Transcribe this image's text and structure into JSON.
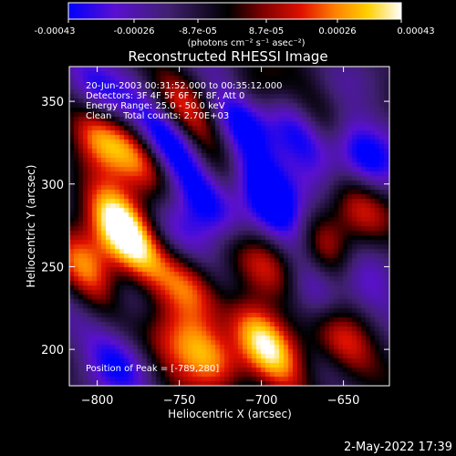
{
  "colorbar": {
    "tick_labels": [
      "-0.00043",
      "-0.00026",
      "-8.7e-05",
      "8.7e-05",
      "0.00026",
      "0.00043"
    ],
    "range": [
      -0.00043,
      0.00043
    ],
    "unit_label": "(photons cm⁻² s⁻¹ asec⁻²)",
    "colors": [
      "#0000ff",
      "#5a10d0",
      "#402070",
      "#000000",
      "#7a0000",
      "#e01000",
      "#ff8000",
      "#ffd000",
      "#ffffff"
    ]
  },
  "chart_data": {
    "type": "heatmap",
    "title": "Reconstructed RHESSI Image",
    "xlabel": "Heliocentric X (arcsec)",
    "ylabel": "Heliocentric Y (arcsec)",
    "xlim": [
      -817,
      -622
    ],
    "ylim": [
      178,
      371
    ],
    "x_ticks": [
      -800,
      -750,
      -700,
      -650
    ],
    "x_tick_labels": [
      "−800",
      "−750",
      "−700",
      "−650"
    ],
    "y_ticks": [
      200,
      250,
      300,
      350
    ],
    "y_tick_labels": [
      "200",
      "250",
      "300",
      "350"
    ],
    "peak": [
      -789,
      280
    ],
    "blobs": [
      {
        "x": -790,
        "y": 282,
        "v": 1.0
      },
      {
        "x": -775,
        "y": 256,
        "v": 0.85
      },
      {
        "x": -770,
        "y": 312,
        "v": 0.75
      },
      {
        "x": -800,
        "y": 330,
        "v": 0.6
      },
      {
        "x": -805,
        "y": 245,
        "v": 0.7
      },
      {
        "x": -745,
        "y": 240,
        "v": 0.6
      },
      {
        "x": -735,
        "y": 200,
        "v": 0.85
      },
      {
        "x": -705,
        "y": 215,
        "v": 0.8
      },
      {
        "x": -692,
        "y": 245,
        "v": 0.6
      },
      {
        "x": -760,
        "y": 205,
        "v": 0.55
      },
      {
        "x": -752,
        "y": 350,
        "v": 0.5
      },
      {
        "x": -730,
        "y": 320,
        "v": 0.45
      },
      {
        "x": -660,
        "y": 260,
        "v": 0.75
      },
      {
        "x": -650,
        "y": 205,
        "v": 0.75
      },
      {
        "x": -640,
        "y": 285,
        "v": 0.5
      },
      {
        "x": -665,
        "y": 340,
        "v": 0.45
      },
      {
        "x": -700,
        "y": 350,
        "v": 0.35
      },
      {
        "x": -690,
        "y": 190,
        "v": 0.5
      },
      {
        "x": -720,
        "y": 265,
        "v": 0.35
      }
    ],
    "lows": [
      {
        "x": -760,
        "y": 330,
        "v": -0.8
      },
      {
        "x": -735,
        "y": 290,
        "v": -0.7
      },
      {
        "x": -700,
        "y": 300,
        "v": -0.85
      },
      {
        "x": -675,
        "y": 330,
        "v": -0.75
      },
      {
        "x": -715,
        "y": 340,
        "v": -0.6
      },
      {
        "x": -680,
        "y": 270,
        "v": -0.55
      },
      {
        "x": -640,
        "y": 320,
        "v": -0.7
      },
      {
        "x": -755,
        "y": 275,
        "v": -0.55
      },
      {
        "x": -720,
        "y": 235,
        "v": -0.5
      },
      {
        "x": -775,
        "y": 225,
        "v": -0.5
      },
      {
        "x": -805,
        "y": 360,
        "v": -0.5
      },
      {
        "x": -665,
        "y": 230,
        "v": -0.5
      },
      {
        "x": -640,
        "y": 240,
        "v": -0.45
      },
      {
        "x": -790,
        "y": 195,
        "v": -0.45
      }
    ],
    "info_lines": [
      "20-Jun-2003 00:31:52.000 to 00:35:12.000",
      "Detectors: 3F 4F 5F 6F 7F 8F, Att 0",
      "Energy Range: 25.0 - 50.0 keV",
      "Clean    Total counts: 2.70E+03"
    ],
    "peak_label": "Position of Peak = [-789,280]"
  },
  "timestamp": "2-May-2022 17:39"
}
